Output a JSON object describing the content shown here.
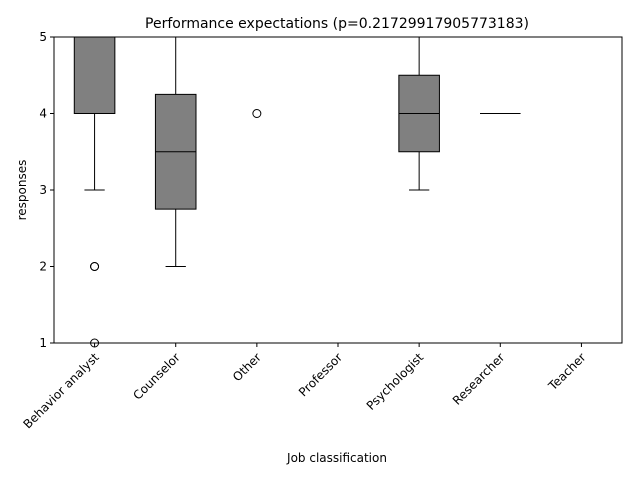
{
  "chart_data": {
    "type": "box",
    "title": "Performance expectations (p=0.21729917905773183)",
    "xlabel": "Job classification",
    "ylabel": "responses",
    "ylim": [
      1,
      5
    ],
    "yticks": [
      "1",
      "2",
      "3",
      "4",
      "5"
    ],
    "grid": false,
    "box_color": "#808080",
    "categories": [
      "Behavior analyst",
      "Counselor",
      "Other",
      "Professor",
      "Psychologist",
      "Researcher",
      "Teacher"
    ],
    "boxes": [
      {
        "category": "Behavior analyst",
        "q1": 4,
        "median": 5,
        "q3": 5,
        "whisker_low": 3,
        "whisker_high": 5,
        "outliers": [
          2,
          2,
          1
        ]
      },
      {
        "category": "Counselor",
        "q1": 2.75,
        "median": 3.5,
        "q3": 4.25,
        "whisker_low": 2,
        "whisker_high": 5,
        "outliers": []
      },
      {
        "category": "Other",
        "q1": 5,
        "median": 5,
        "q3": 5,
        "whisker_low": 5,
        "whisker_high": 5,
        "outliers": [
          4
        ]
      },
      {
        "category": "Professor",
        "q1": 5,
        "median": 5,
        "q3": 5,
        "whisker_low": 5,
        "whisker_high": 5,
        "outliers": []
      },
      {
        "category": "Psychologist",
        "q1": 3.5,
        "median": 4,
        "q3": 4.5,
        "whisker_low": 3,
        "whisker_high": 5,
        "outliers": []
      },
      {
        "category": "Researcher",
        "q1": 4,
        "median": 4,
        "q3": 4,
        "whisker_low": 4,
        "whisker_high": 4,
        "outliers": []
      },
      {
        "category": "Teacher",
        "q1": 5,
        "median": 5,
        "q3": 5,
        "whisker_low": 5,
        "whisker_high": 5,
        "outliers": []
      }
    ]
  }
}
